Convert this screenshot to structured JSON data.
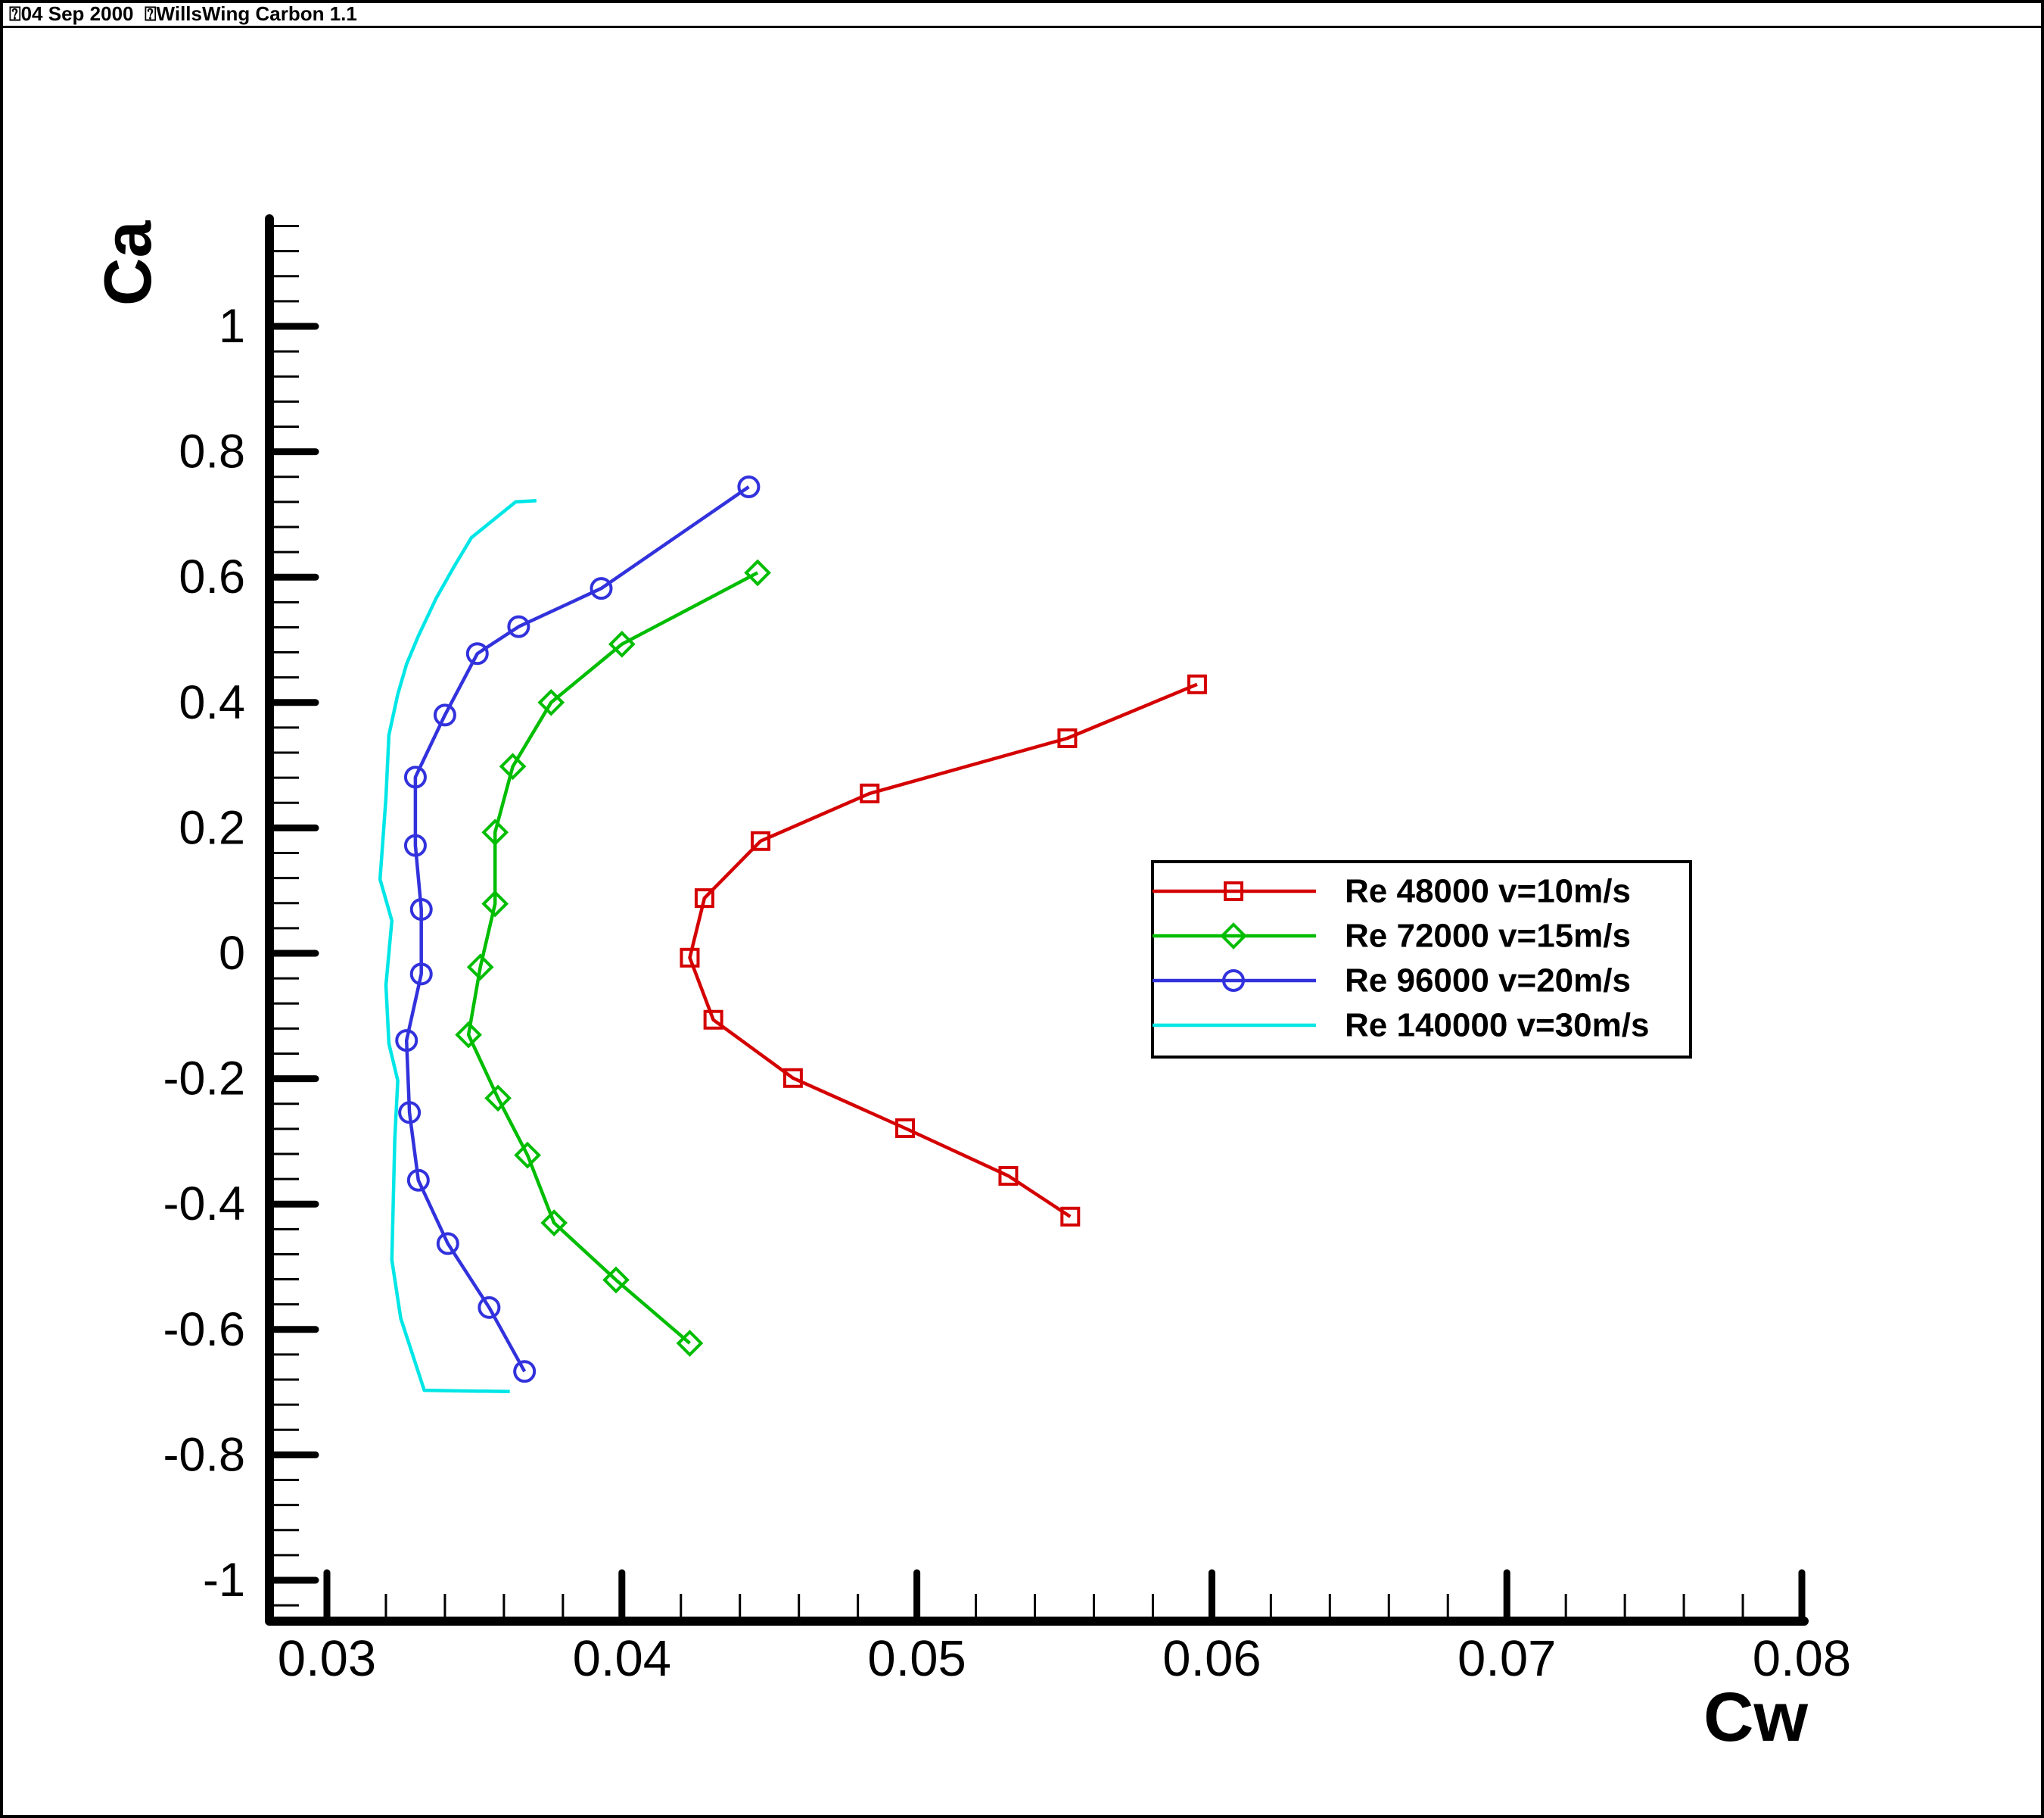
{
  "header": {
    "title": "⍰04 Sep 2000  ⍰WillsWing Carbon 1.1"
  },
  "axes": {
    "x": {
      "label": "Cw",
      "tick_labels": [
        "0.03",
        "0.04",
        "0.05",
        "0.06",
        "0.07",
        "0.08"
      ],
      "tick_values": [
        0.03,
        0.04,
        0.05,
        0.06,
        0.07,
        0.08
      ],
      "minor_step": 0.002,
      "range": [
        0.028,
        0.0801
      ]
    },
    "y": {
      "label": "Ca",
      "tick_labels": [
        "1",
        "0.8",
        "0.6",
        "0.4",
        "0.2",
        "0",
        "-0.2",
        "-0.4",
        "-0.6",
        "-0.8",
        "-1"
      ],
      "tick_values": [
        1,
        0.8,
        0.6,
        0.4,
        0.2,
        0,
        -0.2,
        -0.4,
        -0.6,
        -0.8,
        -1
      ],
      "minor_step": 0.04,
      "range": [
        -1.065,
        1.171
      ]
    }
  },
  "legend": {
    "entries": [
      "Re 48000 v=10m/s",
      "Re 72000 v=15m/s",
      "Re 96000 v=20m/s",
      "Re 140000 v=30m/s"
    ]
  },
  "colors": {
    "axis": "#000000",
    "background": "#ffffff",
    "red": "#d40000",
    "green": "#00bd00",
    "blue": "#3232dd",
    "cyan": "#00e6e6"
  },
  "chart_data": {
    "type": "line",
    "title": "",
    "xlabel": "Cw",
    "ylabel": "Ca",
    "xlim": [
      0.028,
      0.0801
    ],
    "ylim": [
      -1.065,
      1.171
    ],
    "x_major_ticks": [
      0.03,
      0.04,
      0.05,
      0.06,
      0.07,
      0.08
    ],
    "x_minor_step": 0.002,
    "y_major_ticks": [
      1,
      0.8,
      0.6,
      0.4,
      0.2,
      0,
      -0.2,
      -0.4,
      -0.6,
      -0.8,
      -1
    ],
    "y_minor_step": 0.04,
    "grid": false,
    "legend_position": "right-center",
    "series": [
      {
        "name": "Re 48000 v=10m/s",
        "color": "#d40000",
        "marker": "square",
        "points": [
          [
            0.0595,
            0.429
          ],
          [
            0.0551,
            0.343
          ],
          [
            0.0484,
            0.255
          ],
          [
            0.0447,
            0.179
          ],
          [
            0.0428,
            0.088
          ],
          [
            0.0423,
            -0.007
          ],
          [
            0.0431,
            -0.106
          ],
          [
            0.0458,
            -0.199
          ],
          [
            0.0496,
            -0.279
          ],
          [
            0.0531,
            -0.355
          ],
          [
            0.0552,
            -0.42
          ]
        ]
      },
      {
        "name": "Re 72000 v=15m/s",
        "color": "#00bd00",
        "marker": "diamond",
        "points": [
          [
            0.0446,
            0.607
          ],
          [
            0.04,
            0.493
          ],
          [
            0.0376,
            0.4
          ],
          [
            0.0363,
            0.298
          ],
          [
            0.0357,
            0.193
          ],
          [
            0.0357,
            0.079
          ],
          [
            0.0352,
            -0.022
          ],
          [
            0.0348,
            -0.13
          ],
          [
            0.0358,
            -0.231
          ],
          [
            0.0368,
            -0.322
          ],
          [
            0.0377,
            -0.43
          ],
          [
            0.0398,
            -0.521
          ],
          [
            0.0423,
            -0.622
          ]
        ]
      },
      {
        "name": "Re 96000 v=20m/s",
        "color": "#3232dd",
        "marker": "circle",
        "points": [
          [
            0.0443,
            0.744
          ],
          [
            0.0393,
            0.582
          ],
          [
            0.0365,
            0.521
          ],
          [
            0.0351,
            0.478
          ],
          [
            0.034,
            0.38
          ],
          [
            0.033,
            0.281
          ],
          [
            0.033,
            0.172
          ],
          [
            0.0332,
            0.07
          ],
          [
            0.0332,
            -0.033
          ],
          [
            0.0327,
            -0.139
          ],
          [
            0.0328,
            -0.254
          ],
          [
            0.0331,
            -0.362
          ],
          [
            0.0341,
            -0.463
          ],
          [
            0.0355,
            -0.565
          ],
          [
            0.0367,
            -0.667
          ]
        ]
      },
      {
        "name": "Re 140000 v=30m/s",
        "color": "#00e6e6",
        "marker": "none",
        "points": [
          [
            0.0371,
            0.722
          ],
          [
            0.0364,
            0.72
          ],
          [
            0.0354,
            0.682
          ],
          [
            0.0349,
            0.663
          ],
          [
            0.0343,
            0.616
          ],
          [
            0.0337,
            0.566
          ],
          [
            0.0331,
            0.506
          ],
          [
            0.0327,
            0.461
          ],
          [
            0.0324,
            0.413
          ],
          [
            0.0321,
            0.348
          ],
          [
            0.032,
            0.248
          ],
          [
            0.0318,
            0.118
          ],
          [
            0.0322,
            0.052
          ],
          [
            0.032,
            -0.051
          ],
          [
            0.0321,
            -0.144
          ],
          [
            0.0324,
            -0.203
          ],
          [
            0.0323,
            -0.296
          ],
          [
            0.0322,
            -0.489
          ],
          [
            0.0325,
            -0.582
          ],
          [
            0.0333,
            -0.697
          ],
          [
            0.0344,
            -0.698
          ],
          [
            0.0362,
            -0.699
          ]
        ]
      }
    ]
  }
}
